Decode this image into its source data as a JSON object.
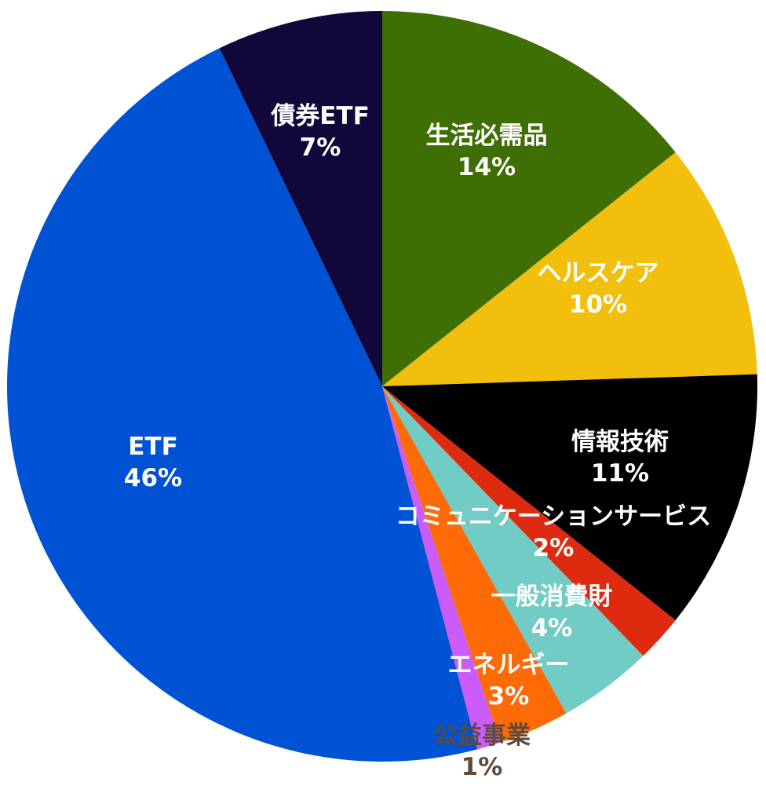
{
  "chart_data": {
    "type": "pie",
    "title": "",
    "series": [
      {
        "label": "生活必需品",
        "value": 14,
        "value_label": "14%",
        "color": "#3f6e04",
        "text_color": "#ffffff"
      },
      {
        "label": "ヘルスケア",
        "value": 10,
        "value_label": "10%",
        "color": "#f2bf0c",
        "text_color": "#ffffff"
      },
      {
        "label": "情報技術",
        "value": 11,
        "value_label": "11%",
        "color": "#000000",
        "text_color": "#ffffff"
      },
      {
        "label": "コミュニケーションサービス",
        "value": 2,
        "value_label": "2%",
        "color": "#de2b0f",
        "text_color": "#ffffff"
      },
      {
        "label": "一般消費財",
        "value": 4,
        "value_label": "4%",
        "color": "#70ccc4",
        "text_color": "#ffffff"
      },
      {
        "label": "エネルギー",
        "value": 3,
        "value_label": "3%",
        "color": "#fd6a06",
        "text_color": "#ffffff"
      },
      {
        "label": "公益事業",
        "value": 1,
        "value_label": "1%",
        "color": "#cc5cf9",
        "text_color": "#5e4a3a"
      },
      {
        "label": "ETF",
        "value": 46,
        "value_label": "46%",
        "color": "#0052d4",
        "text_color": "#ffffff"
      },
      {
        "label": "債券ETF",
        "value": 7,
        "value_label": "7%",
        "color": "#12073b",
        "text_color": "#ffffff"
      }
    ],
    "start_angle_deg": 0,
    "direction": "clockwise",
    "legend": "none"
  }
}
